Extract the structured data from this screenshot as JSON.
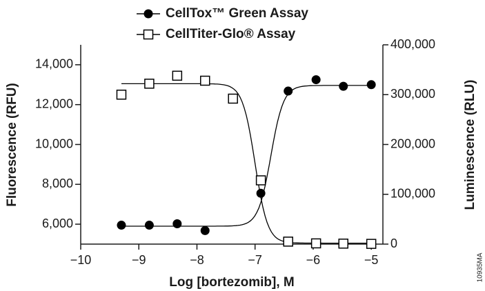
{
  "chart_data": {
    "type": "scatter",
    "x_label": "Log [bortezomib], M",
    "y_label": "Fluorescence (RFU)",
    "y2_label": "Luminescence (RLU)",
    "figure_id": "10935MA",
    "x": [
      -9.3,
      -8.82,
      -8.34,
      -7.86,
      -7.38,
      -6.9,
      -6.43,
      -5.95,
      -5.48,
      -5.0
    ],
    "series": [
      {
        "name": "CellTox™ Green Assay",
        "color": "#000000",
        "marker": "circle-filled",
        "values": [
          5950,
          5950,
          6020,
          5680,
          null,
          7550,
          12680,
          13250,
          12920,
          13000
        ]
      },
      {
        "name": "CellTiter-Glo® Assay",
        "color": "#000000",
        "marker": "square-open",
        "axis": "y2",
        "values": [
          300000,
          322000,
          338000,
          328000,
          292000,
          128000,
          5000,
          1500,
          1000,
          500
        ]
      }
    ],
    "xlim": [
      -10,
      -4.8
    ],
    "xticks": [
      {
        "value": -10,
        "label": "−10"
      },
      {
        "value": -9,
        "label": "−9"
      },
      {
        "value": -8,
        "label": "−8"
      },
      {
        "value": -7,
        "label": "−7"
      },
      {
        "value": -6,
        "label": "−6"
      },
      {
        "value": -5,
        "label": "−5"
      }
    ],
    "ylim": [
      5000,
      15000
    ],
    "yticks": [
      {
        "value": 6000,
        "label": "6,000"
      },
      {
        "value": 8000,
        "label": "8,000"
      },
      {
        "value": 10000,
        "label": "10,000"
      },
      {
        "value": 12000,
        "label": "12,000"
      },
      {
        "value": 14000,
        "label": "14,000"
      }
    ],
    "y2lim": [
      0,
      400000
    ],
    "y2ticks": [
      0,
      {
        "value": 100000,
        "label": "100,000"
      },
      {
        "value": 200000,
        "label": "200,000"
      },
      {
        "value": 300000,
        "label": "300,000"
      },
      {
        "value": 400000,
        "label": "400,000"
      }
    ],
    "grid": false
  }
}
